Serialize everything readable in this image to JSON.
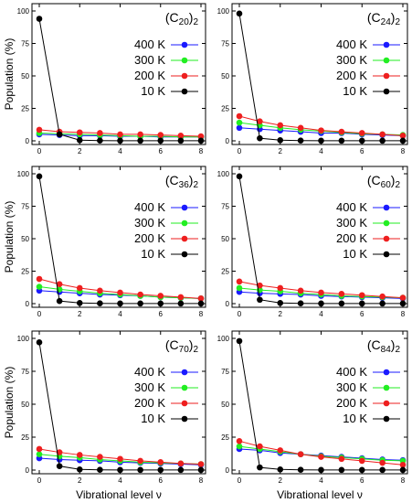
{
  "colors": {
    "400 K": "#1a1aff",
    "300 K": "#22ee22",
    "200 K": "#ee1f1f",
    "10 K": "#000000"
  },
  "chart_data": [
    {
      "type": "line",
      "title": "(C20)2",
      "title_base": "(C",
      "title_sub": "20",
      "title_close": ")",
      "title_sub2": "2",
      "ylabel": "Population (%)",
      "xlabel": "",
      "xlim": [
        0,
        8
      ],
      "ylim": [
        0,
        100
      ],
      "xticks": [
        0,
        2,
        4,
        6,
        8
      ],
      "yticks": [
        0,
        25,
        50,
        75,
        100
      ],
      "yticklabels": [
        "0",
        "25",
        "50",
        "75",
        "100"
      ],
      "x": [
        0,
        1,
        2,
        3,
        4,
        5,
        6,
        7,
        8
      ],
      "legend": "right",
      "series": [
        {
          "name": "400 K",
          "values": [
            5,
            4.5,
            4,
            4,
            3.5,
            3.5,
            3,
            3,
            3
          ]
        },
        {
          "name": "300 K",
          "values": [
            6,
            5.5,
            5,
            4.5,
            4,
            3.5,
            3.5,
            3,
            3
          ]
        },
        {
          "name": "200 K",
          "values": [
            8.5,
            7,
            6.5,
            6,
            5,
            5,
            4.5,
            4,
            3.5
          ]
        },
        {
          "name": "10 K",
          "values": [
            94,
            5,
            0.5,
            0.2,
            0.1,
            0.1,
            0.1,
            0.1,
            0.1
          ]
        }
      ]
    },
    {
      "type": "line",
      "title": "(C24)2",
      "title_base": "(C",
      "title_sub": "24",
      "title_close": ")",
      "title_sub2": "2",
      "ylabel": "",
      "xlabel": "",
      "xlim": [
        0,
        8
      ],
      "ylim": [
        0,
        100
      ],
      "xticks": [
        0,
        2,
        4,
        6,
        8
      ],
      "yticks": [
        0,
        25,
        50,
        75,
        100
      ],
      "yticklabels": [
        "0",
        "25",
        "50",
        "75",
        "100"
      ],
      "x": [
        0,
        1,
        2,
        3,
        4,
        5,
        6,
        7,
        8
      ],
      "legend": "right",
      "series": [
        {
          "name": "400 K",
          "values": [
            10,
            9,
            8,
            7,
            6,
            6,
            5,
            4.5,
            4
          ]
        },
        {
          "name": "300 K",
          "values": [
            14,
            12,
            10,
            8.5,
            7.5,
            6.5,
            5.5,
            5,
            4.5
          ]
        },
        {
          "name": "200 K",
          "values": [
            19,
            15,
            12,
            10,
            8,
            7,
            6,
            5,
            4
          ]
        },
        {
          "name": "10 K",
          "values": [
            98,
            2,
            0.5,
            0.2,
            0.1,
            0.1,
            0.1,
            0.1,
            0.1
          ]
        }
      ]
    },
    {
      "type": "line",
      "title": "(C36)2",
      "title_base": "(C",
      "title_sub": "36",
      "title_close": ")",
      "title_sub2": "2",
      "ylabel": "Population (%)",
      "xlabel": "",
      "xlim": [
        0,
        8
      ],
      "ylim": [
        0,
        100
      ],
      "xticks": [
        0,
        2,
        4,
        6,
        8
      ],
      "yticks": [
        0,
        25,
        50,
        75,
        100
      ],
      "yticklabels": [
        "0",
        "25",
        "50",
        "75",
        "100"
      ],
      "x": [
        0,
        1,
        2,
        3,
        4,
        5,
        6,
        7,
        8
      ],
      "legend": "right",
      "series": [
        {
          "name": "400 K",
          "values": [
            10,
            9,
            8,
            7,
            6.5,
            6,
            5,
            4.5,
            4
          ]
        },
        {
          "name": "300 K",
          "values": [
            13,
            11,
            9.5,
            8,
            7,
            6,
            5,
            4.5,
            4
          ]
        },
        {
          "name": "200 K",
          "values": [
            19,
            15,
            12,
            10,
            8.5,
            7,
            6,
            5,
            4
          ]
        },
        {
          "name": "10 K",
          "values": [
            98,
            2,
            0.5,
            0.2,
            0.1,
            0.1,
            0.1,
            0.1,
            0.1
          ]
        }
      ]
    },
    {
      "type": "line",
      "title": "(C60)2",
      "title_base": "(C",
      "title_sub": "60",
      "title_close": ")",
      "title_sub2": "2",
      "ylabel": "",
      "xlabel": "",
      "xlim": [
        0,
        8
      ],
      "ylim": [
        0,
        100
      ],
      "xticks": [
        0,
        2,
        4,
        6,
        8
      ],
      "yticks": [
        0,
        25,
        50,
        75,
        100
      ],
      "yticklabels": [
        "0",
        "25",
        "50",
        "75",
        "100"
      ],
      "x": [
        0,
        1,
        2,
        3,
        4,
        5,
        6,
        7,
        8
      ],
      "legend": "right",
      "series": [
        {
          "name": "400 K",
          "values": [
            9,
            8,
            7.5,
            7,
            6,
            5.5,
            5,
            4.5,
            4
          ]
        },
        {
          "name": "300 K",
          "values": [
            12,
            10.5,
            9.5,
            8,
            7,
            6,
            5.5,
            5,
            4.5
          ]
        },
        {
          "name": "200 K",
          "values": [
            17,
            14,
            12,
            10,
            8.5,
            7.5,
            6.5,
            5.5,
            4.5
          ]
        },
        {
          "name": "10 K",
          "values": [
            98,
            3,
            0.5,
            0.2,
            0.1,
            0.1,
            0.1,
            0.1,
            0.1
          ]
        }
      ]
    },
    {
      "type": "line",
      "title": "(C70)2",
      "title_base": "(C",
      "title_sub": "70",
      "title_close": ")",
      "title_sub2": "2",
      "ylabel": "Population (%)",
      "xlabel": "Vibrational level ν",
      "xlim": [
        0,
        8
      ],
      "ylim": [
        0,
        100
      ],
      "xticks": [
        0,
        2,
        4,
        6,
        8
      ],
      "yticks": [
        0,
        25,
        50,
        75,
        100
      ],
      "yticklabels": [
        "0",
        "25",
        "50",
        "75",
        "100"
      ],
      "x": [
        0,
        1,
        2,
        3,
        4,
        5,
        6,
        7,
        8
      ],
      "legend": "right",
      "series": [
        {
          "name": "400 K",
          "values": [
            9,
            8,
            7.5,
            7,
            6,
            5.5,
            5,
            4.5,
            4
          ]
        },
        {
          "name": "300 K",
          "values": [
            12,
            10.5,
            9.5,
            8,
            7,
            6,
            5.5,
            5,
            4.5
          ]
        },
        {
          "name": "200 K",
          "values": [
            16,
            13.5,
            11.5,
            10,
            8.5,
            7,
            6,
            5,
            4.5
          ]
        },
        {
          "name": "10 K",
          "values": [
            97,
            3,
            0.5,
            0.2,
            0.1,
            0.1,
            0.1,
            0.1,
            0.1
          ]
        }
      ]
    },
    {
      "type": "line",
      "title": "(C84)2",
      "title_base": "(C",
      "title_sub": "84",
      "title_close": ")",
      "title_sub2": "2",
      "ylabel": "",
      "xlabel": "Vibrational level ν",
      "xlim": [
        0,
        8
      ],
      "ylim": [
        0,
        100
      ],
      "xticks": [
        0,
        2,
        4,
        6,
        8
      ],
      "yticks": [
        0,
        25,
        50,
        75,
        100
      ],
      "yticklabels": [
        "0",
        "25",
        "50",
        "75",
        "100"
      ],
      "x": [
        0,
        1,
        2,
        3,
        4,
        5,
        6,
        7,
        8
      ],
      "legend": "right",
      "series": [
        {
          "name": "400 K",
          "values": [
            16,
            15,
            13,
            12,
            11,
            10,
            9,
            8,
            7.5
          ]
        },
        {
          "name": "300 K",
          "values": [
            18,
            16,
            14,
            12,
            10.5,
            9.5,
            8.5,
            7.5,
            7
          ]
        },
        {
          "name": "200 K",
          "values": [
            22,
            18,
            15,
            12,
            10,
            8.5,
            7,
            5.5,
            4
          ]
        },
        {
          "name": "10 K",
          "values": [
            98,
            2,
            0.5,
            0.2,
            0.1,
            0.1,
            0.1,
            0.1,
            0.1
          ]
        }
      ]
    }
  ]
}
